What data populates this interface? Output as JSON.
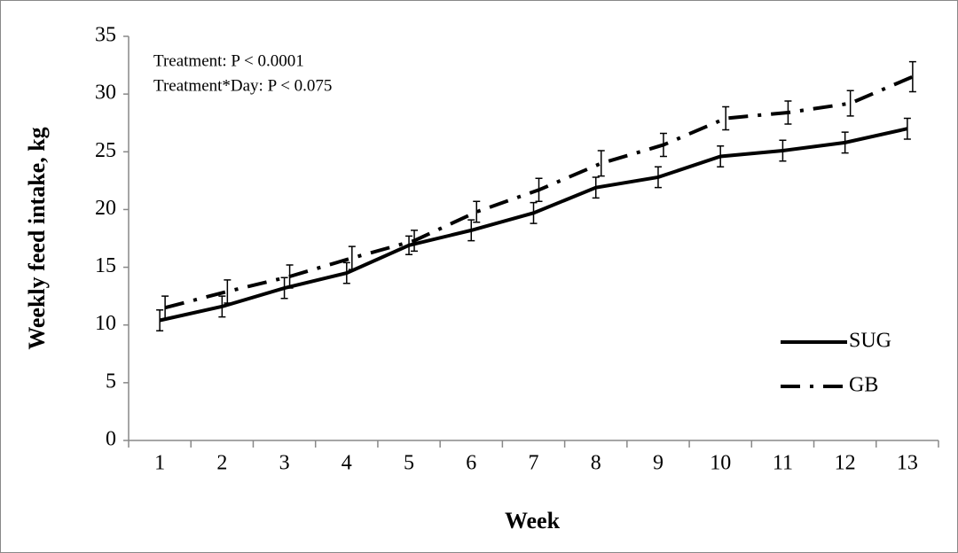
{
  "chart_data": {
    "type": "line",
    "x_label": "Week",
    "y_label": "Weekly feed intake, kg",
    "annotations": [
      "Treatment: P < 0.0001",
      "Treatment*Day: P < 0.075"
    ],
    "categories": [
      "1",
      "2",
      "3",
      "4",
      "5",
      "6",
      "7",
      "8",
      "9",
      "10",
      "11",
      "12",
      "13"
    ],
    "series": [
      {
        "name": "SUG",
        "color": "#000000",
        "line_style": "solid",
        "values": [
          10.4,
          11.6,
          13.2,
          14.5,
          16.9,
          18.2,
          19.7,
          21.9,
          22.8,
          24.6,
          25.1,
          25.8,
          27.0
        ],
        "errors": [
          0.9,
          0.9,
          0.9,
          0.9,
          0.8,
          0.9,
          0.9,
          0.9,
          0.9,
          0.9,
          0.9,
          0.9,
          0.9
        ]
      },
      {
        "name": "GB",
        "color": "#000000",
        "line_style": "dashdot",
        "values": [
          11.5,
          12.9,
          14.2,
          15.8,
          17.3,
          19.8,
          21.7,
          24.0,
          25.6,
          27.9,
          28.4,
          29.2,
          31.5
        ],
        "errors": [
          1.0,
          1.0,
          1.0,
          1.0,
          0.9,
          0.9,
          1.0,
          1.1,
          1.0,
          1.0,
          1.0,
          1.1,
          1.3
        ]
      }
    ],
    "ylim": [
      0,
      35
    ],
    "yticks": [
      0,
      5,
      10,
      15,
      20,
      25,
      30,
      35
    ],
    "grid": false,
    "legend": "lower right"
  }
}
